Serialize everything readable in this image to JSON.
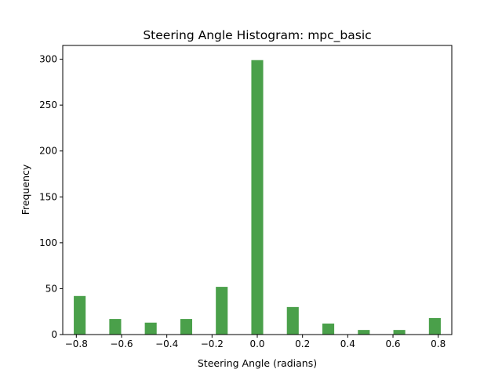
{
  "chart_data": {
    "type": "bar",
    "title": "Steering Angle Histogram: mpc_basic",
    "xlabel": "Steering Angle (radians)",
    "ylabel": "Frequency",
    "bar_color": "#4aa04a",
    "xlim": [
      -0.86,
      0.86
    ],
    "ylim": [
      0,
      315
    ],
    "xticks": [
      -0.8,
      -0.6,
      -0.4,
      -0.2,
      0.0,
      0.2,
      0.4,
      0.6,
      0.8
    ],
    "xtick_labels": [
      "−0.8",
      "−0.6",
      "−0.4",
      "−0.2",
      "0.0",
      "0.2",
      "0.4",
      "0.6",
      "0.8"
    ],
    "yticks": [
      0,
      50,
      100,
      150,
      200,
      250,
      300
    ],
    "ytick_labels": [
      "0",
      "50",
      "100",
      "150",
      "200",
      "250",
      "300"
    ],
    "bin_width": 0.0524,
    "bins": [
      {
        "x": -0.785,
        "count": 42
      },
      {
        "x": -0.628,
        "count": 17
      },
      {
        "x": -0.471,
        "count": 13
      },
      {
        "x": -0.314,
        "count": 17
      },
      {
        "x": -0.157,
        "count": 52
      },
      {
        "x": 0.0,
        "count": 299
      },
      {
        "x": 0.157,
        "count": 30
      },
      {
        "x": 0.314,
        "count": 12
      },
      {
        "x": 0.471,
        "count": 5
      },
      {
        "x": 0.628,
        "count": 5
      },
      {
        "x": 0.785,
        "count": 18
      }
    ],
    "grid": false,
    "legend": "none"
  }
}
